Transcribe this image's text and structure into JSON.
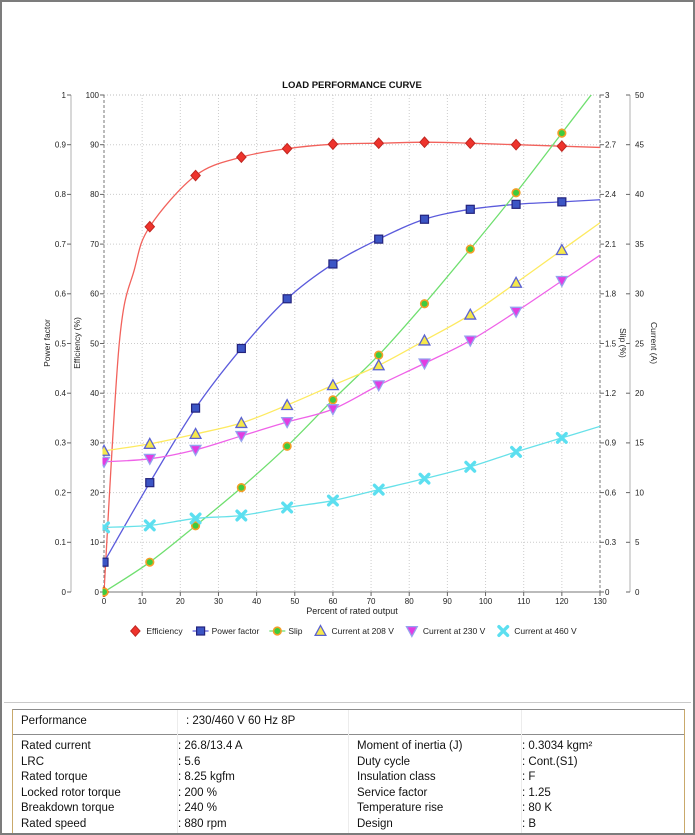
{
  "report": {
    "accent_border_color": "#c9a96b",
    "frame_color": "#7c7c7c"
  },
  "chart_data": {
    "type": "line",
    "title": "LOAD PERFORMANCE CURVE",
    "xlabel": "Percent of rated output",
    "xlim": [
      0,
      130
    ],
    "x_step": 10,
    "grid": true,
    "legend_position": "bottom",
    "x": [
      0,
      12,
      24,
      36,
      48,
      60,
      72,
      84,
      96,
      108,
      120
    ],
    "axes": {
      "power_factor": {
        "label": "Power factor",
        "min": 0,
        "max": 1,
        "step": 0.1,
        "side": "left"
      },
      "efficiency": {
        "label": "Efficiency (%)",
        "min": 0,
        "max": 100,
        "step": 10,
        "side": "left"
      },
      "slip": {
        "label": "Slip (%)",
        "min": 0,
        "max": 3,
        "step": 0.3,
        "side": "right"
      },
      "current": {
        "label": "Current (A)",
        "min": 0,
        "max": 50,
        "step": 5,
        "side": "right"
      }
    },
    "series": [
      {
        "name": "Efficiency",
        "scale": "efficiency",
        "marker": "diamond",
        "legend_line": false,
        "line_color": "#f2625c",
        "fill": "#ee332c",
        "edge": "#c02620",
        "values": [
          0,
          73.5,
          83.8,
          87.5,
          89.2,
          90.1,
          90.3,
          90.5,
          90.3,
          90.0,
          89.7
        ],
        "line_hint_points": [
          [
            4,
            50
          ],
          [
            8,
            65
          ]
        ]
      },
      {
        "name": "Power factor",
        "scale": "power_factor",
        "marker": "square",
        "legend_line": true,
        "line_color": "#5b5bdc",
        "fill": "#3c55c5",
        "edge": "#23237d",
        "values": [
          0.06,
          0.22,
          0.37,
          0.49,
          0.59,
          0.66,
          0.71,
          0.75,
          0.77,
          0.78,
          0.785
        ]
      },
      {
        "name": "Slip",
        "scale": "slip",
        "marker": "circle",
        "legend_line": true,
        "line_color": "#6fdf6f",
        "fill": "#3ecb3e",
        "edge": "#f49e26",
        "values": [
          0,
          0.18,
          0.4,
          0.63,
          0.88,
          1.16,
          1.43,
          1.74,
          2.07,
          2.41,
          2.77
        ]
      },
      {
        "name": "Current at 208 V",
        "scale": "current",
        "marker": "triangle-up",
        "legend_line": false,
        "line_color": "#fdea60",
        "fill": "#f6e84b",
        "edge": "#5a62d2",
        "values": [
          14.2,
          14.9,
          15.9,
          17.0,
          18.8,
          20.8,
          22.8,
          25.3,
          27.9,
          31.1,
          34.4
        ]
      },
      {
        "name": "Current at 230 V",
        "scale": "current",
        "marker": "triangle-down",
        "legend_line": false,
        "line_color": "#ef62e8",
        "fill": "#e23ce2",
        "edge": "#96a2ef",
        "values": [
          13.1,
          13.4,
          14.3,
          15.7,
          17.1,
          18.4,
          20.8,
          23.0,
          25.3,
          28.2,
          31.3
        ]
      },
      {
        "name": "Current at 460 V",
        "scale": "current",
        "marker": "x",
        "legend_line": false,
        "line_color": "#67e1e9",
        "fill": "#5cdff0",
        "edge": "#5cdff0",
        "values": [
          6.5,
          6.7,
          7.4,
          7.7,
          8.5,
          9.2,
          10.3,
          11.4,
          12.6,
          14.1,
          15.5
        ]
      }
    ]
  },
  "specs_table": {
    "performance_row": {
      "label": "Performance",
      "value": ": 230/460 V 60 Hz 8P"
    },
    "left_rows": [
      {
        "label": "Rated current",
        "value": ": 26.8/13.4 A"
      },
      {
        "label": "LRC",
        "value": ": 5.6"
      },
      {
        "label": "Rated torque",
        "value": ": 8.25 kgfm"
      },
      {
        "label": "Locked rotor torque",
        "value": ": 200 %"
      },
      {
        "label": "Breakdown torque",
        "value": ": 240 %"
      },
      {
        "label": "Rated speed",
        "value": ": 880 rpm"
      }
    ],
    "right_rows": [
      {
        "label": "Moment of inertia (J)",
        "value": ": 0.3034 kgm²"
      },
      {
        "label": "Duty cycle",
        "value": ": Cont.(S1)"
      },
      {
        "label": "Insulation class",
        "value": ": F"
      },
      {
        "label": "Service factor",
        "value": ": 1.25"
      },
      {
        "label": "Temperature rise",
        "value": ": 80 K"
      },
      {
        "label": "Design",
        "value": ": B"
      }
    ]
  }
}
